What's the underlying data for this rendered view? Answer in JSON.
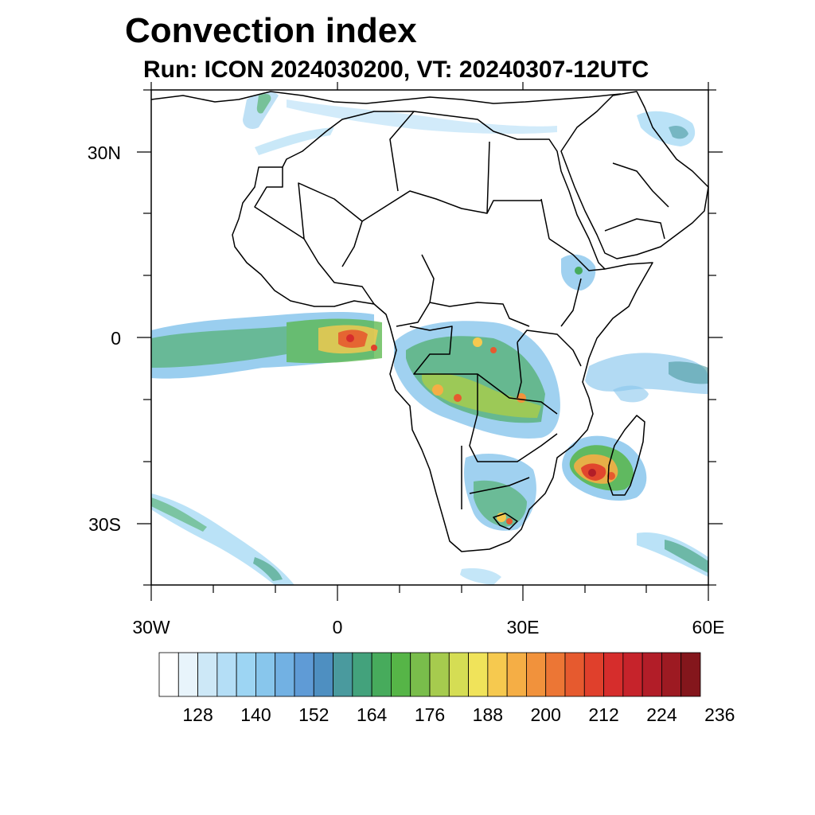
{
  "title": "Convection index",
  "subtitle": "Run: ICON 2024030200,  VT: 20240307-12UTC",
  "map": {
    "lat_labels": [
      "30N",
      "0",
      "30S"
    ],
    "lon_labels": [
      "30W",
      "0",
      "30E",
      "60E"
    ],
    "extent": {
      "lon": [
        -30,
        60
      ],
      "lat": [
        -40,
        40
      ]
    }
  },
  "colorbar": {
    "labels": [
      "128",
      "140",
      "152",
      "164",
      "176",
      "188",
      "200",
      "212",
      "224",
      "236"
    ],
    "colors": [
      "#ffffff",
      "#e8f4fb",
      "#cde8f7",
      "#b4def6",
      "#9dd5f3",
      "#88c6ec",
      "#72b1e3",
      "#5f9bd6",
      "#4e8fc1",
      "#4a9a9e",
      "#43a27c",
      "#47ab5c",
      "#56b547",
      "#79bd4b",
      "#a6cb4e",
      "#d5dd54",
      "#f0e35a",
      "#f6c94f",
      "#f5ae45",
      "#f1923c",
      "#ec7635",
      "#e65a2f",
      "#e0402c",
      "#d62d2c",
      "#c6232b",
      "#b21d28",
      "#9d1a22",
      "#84161c"
    ]
  }
}
